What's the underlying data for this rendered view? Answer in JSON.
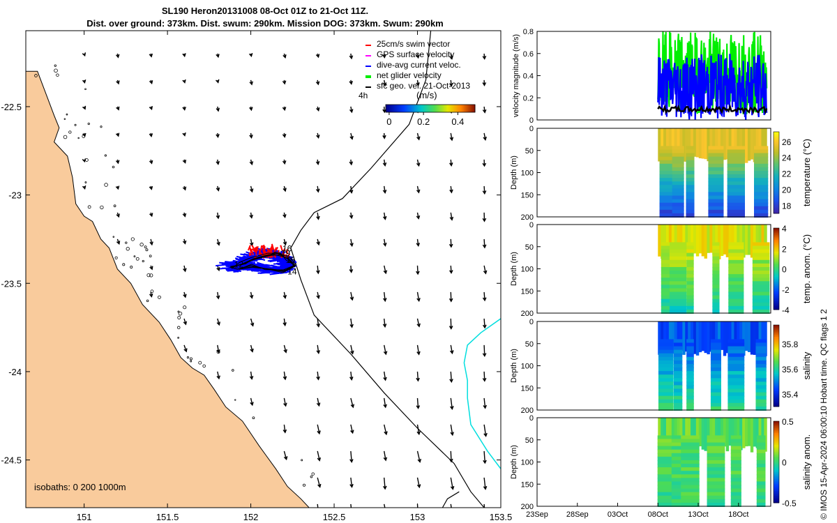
{
  "header": {
    "title_line1": "SL190 Heron20131008 08-Oct 01Z to 21-Oct 11Z.",
    "title_line2": "Dist. over ground: 373km. Dist. swum: 290km. Mission DOG: 373km. Swum: 290km"
  },
  "credit": "© IMOS 15-Apr-2024 06:00:10 Hobart time. QC flags 1  2",
  "colors": {
    "land": "#f9cb9c",
    "swim_vector": "#ff0000",
    "gps_velocity": "#ff00ff",
    "dive_avg_current": "#0000ff",
    "net_glider_velocity": "#00ee00",
    "sfc_geo_velocity": "#000000",
    "isobath_1000m": "#00dede"
  },
  "chart_data": [
    {
      "type": "map",
      "title": "SL190 Heron20131008 glider track and surface geostrophic velocity",
      "xlim": [
        150.65,
        153.5
      ],
      "ylim": [
        -24.77,
        -22.07
      ],
      "xticks": [
        151,
        151.5,
        152,
        152.5,
        153,
        153.5
      ],
      "xtick_labels": [
        "151",
        "151.5",
        "152",
        "152.5",
        "153",
        "153.5"
      ],
      "yticks": [
        -22.5,
        -23,
        -23.5,
        -24,
        -24.5
      ],
      "ytick_labels": [
        "-22.5",
        "-23",
        "-23.5",
        "-24",
        "-24.5"
      ],
      "legend": {
        "placement": "top-right",
        "entries": [
          "25cm/s swim vector",
          "GPS surface velocity",
          "dive-avg current veloc.",
          "net glider velocity",
          "sfc geo. vel. 21-Oct-2013"
        ],
        "time_label": "4h",
        "colorbar_label": "(m/s)",
        "colorbar_range": [
          -0.02,
          0.5
        ],
        "colorbar_ticks": [
          0,
          0.2,
          0.4
        ],
        "colorbar_tick_labels": [
          "0",
          "0.2",
          "0.4"
        ]
      },
      "isobath_note": "isobaths: 0   200  1000m",
      "isobath_200m": [
        [
          153.08,
          -22.07
        ],
        [
          153.05,
          -22.35
        ],
        [
          152.95,
          -22.6
        ],
        [
          152.72,
          -22.85
        ],
        [
          152.55,
          -23.02
        ],
        [
          152.38,
          -23.1
        ],
        [
          152.3,
          -23.2
        ],
        [
          152.24,
          -23.3
        ],
        [
          152.3,
          -23.48
        ],
        [
          152.38,
          -23.68
        ],
        [
          152.6,
          -23.9
        ],
        [
          152.8,
          -24.12
        ],
        [
          153.0,
          -24.32
        ],
        [
          153.22,
          -24.52
        ],
        [
          153.32,
          -24.68
        ],
        [
          153.4,
          -24.77
        ]
      ],
      "isobath_1000m": [
        [
          153.5,
          -23.7
        ],
        [
          153.38,
          -23.78
        ],
        [
          153.3,
          -23.85
        ],
        [
          153.28,
          -23.95
        ],
        [
          153.3,
          -24.05
        ],
        [
          153.3,
          -24.15
        ],
        [
          153.32,
          -24.3
        ],
        [
          153.42,
          -24.45
        ],
        [
          153.5,
          -24.55
        ]
      ],
      "isobath_200m_south": [
        [
          153.15,
          -24.77
        ],
        [
          153.18,
          -24.72
        ],
        [
          153.25,
          -24.68
        ]
      ],
      "coastline": [
        [
          150.65,
          -22.3
        ],
        [
          150.72,
          -22.3
        ],
        [
          150.78,
          -22.45
        ],
        [
          150.82,
          -22.55
        ],
        [
          150.85,
          -22.62
        ],
        [
          150.82,
          -22.7
        ],
        [
          150.9,
          -22.78
        ],
        [
          150.93,
          -22.9
        ],
        [
          150.95,
          -23.05
        ],
        [
          151.0,
          -23.12
        ],
        [
          151.05,
          -23.15
        ],
        [
          151.1,
          -23.25
        ],
        [
          151.15,
          -23.3
        ],
        [
          151.2,
          -23.42
        ],
        [
          151.28,
          -23.5
        ],
        [
          151.35,
          -23.62
        ],
        [
          151.45,
          -23.72
        ],
        [
          151.52,
          -23.82
        ],
        [
          151.58,
          -23.92
        ],
        [
          151.65,
          -23.98
        ],
        [
          151.72,
          -24.02
        ],
        [
          151.78,
          -24.1
        ],
        [
          151.85,
          -24.2
        ],
        [
          151.95,
          -24.28
        ],
        [
          152.05,
          -24.42
        ],
        [
          152.15,
          -24.55
        ],
        [
          152.22,
          -24.65
        ],
        [
          152.3,
          -24.72
        ],
        [
          152.35,
          -24.77
        ]
      ],
      "glider_positions": [
        [
          151.88,
          -23.41
        ],
        [
          151.95,
          -23.39
        ],
        [
          152.02,
          -23.36
        ],
        [
          152.1,
          -23.34
        ],
        [
          152.16,
          -23.33
        ],
        [
          152.22,
          -23.36
        ],
        [
          152.26,
          -23.4
        ],
        [
          152.2,
          -23.43
        ],
        [
          152.1,
          -23.42
        ],
        [
          152.0,
          -23.4
        ],
        [
          151.92,
          -23.42
        ]
      ],
      "glider_day_labels": [
        {
          "label": "16",
          "lon": 152.19,
          "lat": -23.32
        },
        {
          "label": "19",
          "lon": 152.18,
          "lat": -23.345
        },
        {
          "label": "15",
          "lon": 152.21,
          "lat": -23.385
        },
        {
          "label": "12",
          "lon": 151.9,
          "lat": -23.41
        },
        {
          "label": "14",
          "lon": 152.22,
          "lat": -23.45
        }
      ],
      "geo_velocity_arrow_grid": {
        "lons": [
          151.0,
          151.2,
          151.4,
          151.6,
          151.8,
          152.0,
          152.2,
          152.4,
          152.6,
          152.8,
          153.0,
          153.2,
          153.4
        ],
        "lats": [
          -22.2,
          -22.35,
          -22.5,
          -22.65,
          -22.8,
          -22.95,
          -23.1,
          -23.25,
          -23.4,
          -23.55,
          -23.7,
          -23.85,
          -24.0,
          -24.15,
          -24.3,
          -24.45,
          -24.6,
          -24.75
        ]
      }
    },
    {
      "type": "line",
      "ylabel": "velocity magnitude (m/s)",
      "ylim": [
        0,
        0.8
      ],
      "yticks": [
        0,
        0.2,
        0.4,
        0.6,
        0.8
      ],
      "ytick_labels": [
        "0",
        "0.2",
        "0.4",
        "0.6",
        "0.8"
      ],
      "x_range_days_since_23Sep": [
        0,
        29
      ],
      "data_start_day": 15,
      "series": [
        {
          "name": "net glider velocity",
          "color": "#00ee00",
          "values_approx_range": [
            0.05,
            0.8
          ]
        },
        {
          "name": "dive-avg current veloc.",
          "color": "#0000ff",
          "values_approx_range": [
            0.0,
            0.6
          ]
        },
        {
          "name": "sfc geo. vel.",
          "color": "#000000",
          "values_approx_range": [
            0.07,
            0.12
          ]
        }
      ]
    },
    {
      "type": "heatmap",
      "ylabel": "Depth (m)",
      "ylim": [
        200,
        0
      ],
      "yticks": [
        50,
        100,
        150,
        200
      ],
      "ytick_labels": [
        "50",
        "100",
        "150",
        "200"
      ],
      "colorbar_label": "temperature (°C)",
      "colorbar_range": [
        17,
        27.2
      ],
      "colorbar_ticks": [
        18,
        20,
        22,
        24,
        26
      ],
      "colorbar_tick_labels": [
        "18",
        "20",
        "22",
        "24",
        "26"
      ],
      "colormap": "parula",
      "surface_value": 25.5,
      "deep_value": 18
    },
    {
      "type": "heatmap",
      "ylabel": "Depth (m)",
      "ylim": [
        200,
        0
      ],
      "yticks": [
        50,
        100,
        150,
        200
      ],
      "ytick_labels": [
        "50",
        "100",
        "150",
        "200"
      ],
      "colorbar_label": "temp. anom. (°C)",
      "colorbar_range": [
        -4,
        4
      ],
      "colorbar_ticks": [
        -4,
        -2,
        0,
        2,
        4
      ],
      "colorbar_tick_labels": [
        "-4",
        "-2",
        "0",
        "2",
        "4"
      ],
      "colormap": "parula",
      "surface_value": 1.5,
      "deep_value": -0.5
    },
    {
      "type": "heatmap",
      "ylabel": "Depth (m)",
      "ylim": [
        200,
        0
      ],
      "yticks": [
        50,
        100,
        150,
        200
      ],
      "ytick_labels": [
        "50",
        "100",
        "150",
        "200"
      ],
      "colorbar_label": "salinity",
      "colorbar_range": [
        35.3,
        35.95
      ],
      "colorbar_ticks": [
        35.4,
        35.6,
        35.8
      ],
      "colorbar_tick_labels": [
        "35.4",
        "35.6",
        "35.8"
      ],
      "colormap": "parula",
      "surface_value": 35.45,
      "deep_value": 35.62
    },
    {
      "type": "heatmap",
      "ylabel": "Depth (m)",
      "ylim": [
        200,
        0
      ],
      "yticks": [
        50,
        100,
        150,
        200
      ],
      "ytick_labels": [
        "50",
        "100",
        "150",
        "200"
      ],
      "colorbar_label": "salinity anom.",
      "colorbar_range": [
        -0.5,
        0.5
      ],
      "colorbar_ticks": [
        -0.5,
        0,
        0.5
      ],
      "colorbar_tick_labels": [
        "-0.5",
        "0",
        "0.5"
      ],
      "colormap": "parula",
      "surface_value": 0.05,
      "deep_value": 0.0,
      "x_ticks_days_since_23Sep": [
        0,
        5,
        10,
        15,
        20,
        25
      ],
      "x_tick_labels": [
        "23Sep",
        "28Sep",
        "03Oct",
        "08Oct",
        "13Oct",
        "18Oct"
      ]
    }
  ],
  "profile_panels": {
    "x_range_days_since_23Sep": [
      0,
      29
    ],
    "data_start_day": 15,
    "data_end_day": 28.5,
    "dive_columns_days": [
      16.0,
      17.5,
      19.0,
      22.2,
      24.7,
      27.8
    ]
  }
}
